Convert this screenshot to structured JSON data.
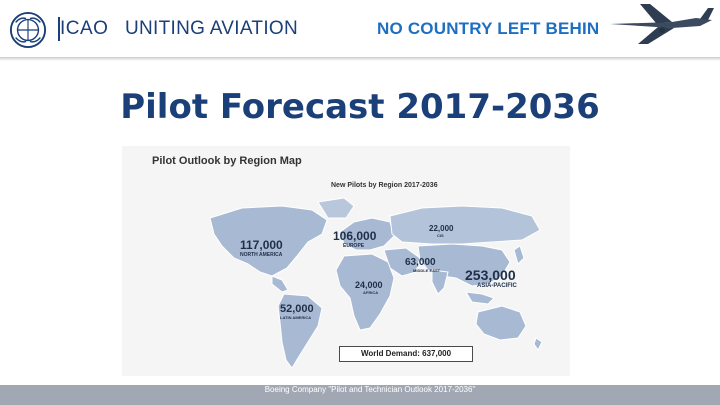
{
  "header": {
    "org_abbrev": "ICAO",
    "tagline": "UNITING AVIATION",
    "motto": "NO COUNTRY LEFT BEHIND"
  },
  "slide": {
    "title": "Pilot Forecast 2017-2036"
  },
  "map": {
    "heading": "Pilot Outlook by Region Map",
    "subheading": "New Pilots by Region 2017-2036",
    "regions": [
      {
        "id": "north-america",
        "value": "117,000",
        "name": "NORTH AMERICA"
      },
      {
        "id": "europe",
        "value": "106,000",
        "name": "EUROPE"
      },
      {
        "id": "cis",
        "value": "22,000",
        "name": "CIS"
      },
      {
        "id": "middle-east",
        "value": "63,000",
        "name": "MIDDLE EAST"
      },
      {
        "id": "africa",
        "value": "24,000",
        "name": "AFRICA"
      },
      {
        "id": "asia-pacific",
        "value": "253,000",
        "name": "ASIA-PACIFIC"
      },
      {
        "id": "latin-america",
        "value": "52,000",
        "name": "LATIN AMERICA"
      }
    ],
    "world_demand": "World Demand: 637,000",
    "colors": {
      "land": "#a7b9d3",
      "land_light": "#c7d3e5",
      "border": "#ffffff"
    }
  },
  "footer": {
    "source": "Boeing Company \"Pilot and Technician Outlook 2017-2036\""
  }
}
